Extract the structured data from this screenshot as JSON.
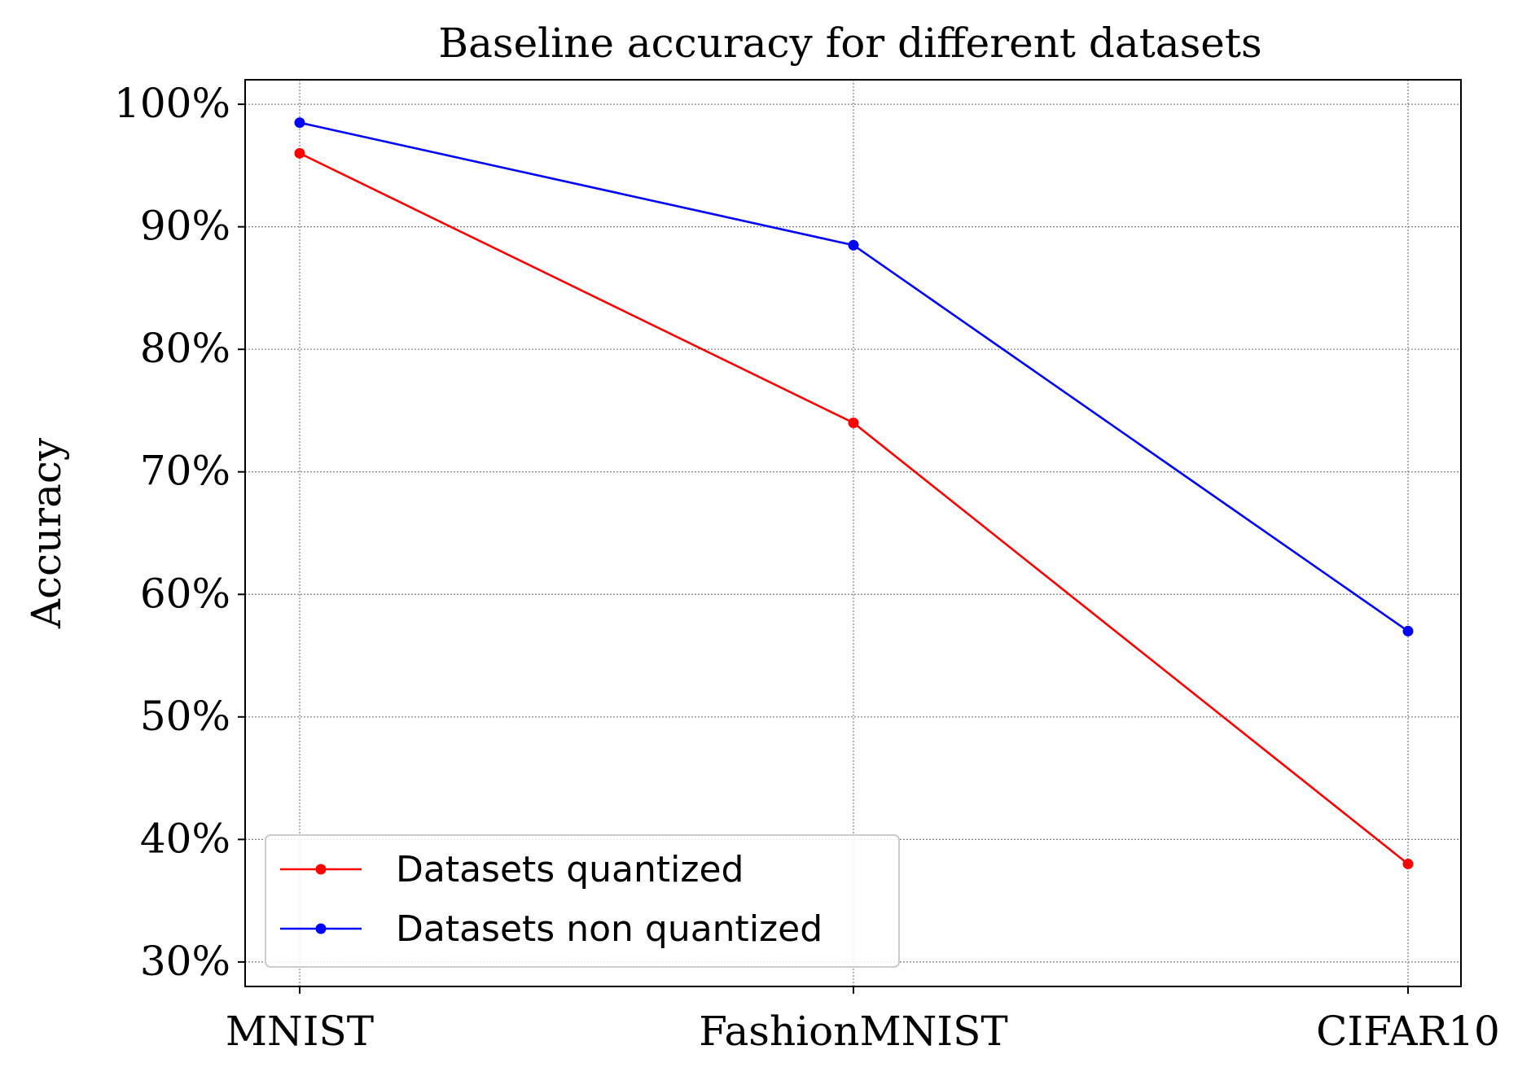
{
  "chart_data": {
    "type": "line",
    "title": "Baseline accuracy for different datasets",
    "xlabel": "",
    "ylabel": "Accuracy",
    "categories": [
      "MNIST",
      "FashionMNIST",
      "CIFAR10"
    ],
    "y_ticks": [
      30,
      40,
      50,
      60,
      70,
      80,
      90,
      100
    ],
    "y_tick_labels": [
      "30%",
      "40%",
      "50%",
      "60%",
      "70%",
      "80%",
      "90%",
      "100%"
    ],
    "ylim": [
      28,
      102
    ],
    "grid": true,
    "legend_position": "lower-left",
    "series": [
      {
        "name": "Datasets quantized",
        "color": "#ff0000",
        "values": [
          96,
          74,
          38
        ]
      },
      {
        "name": "Datasets non quantized",
        "color": "#0000ff",
        "values": [
          98.5,
          88.5,
          57
        ]
      }
    ]
  }
}
